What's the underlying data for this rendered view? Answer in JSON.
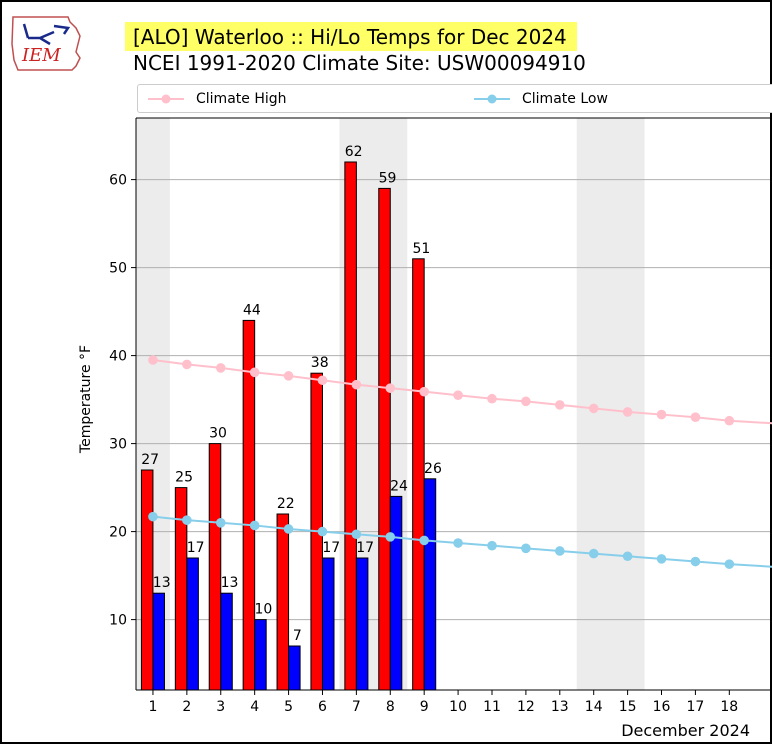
{
  "logo": {
    "text": "IEM"
  },
  "header": {
    "title": "[ALO] Waterloo :: Hi/Lo Temps for Dec 2024",
    "subtitle": "NCEI 1991-2020 Climate Site: USW00094910"
  },
  "legend": [
    {
      "label": "Climate High",
      "color": "#ffc0cb"
    },
    {
      "label": "Climate Low",
      "color": "#87ceeb"
    }
  ],
  "chart_data": {
    "type": "bar",
    "title": "[ALO] Waterloo :: Hi/Lo Temps for Dec 2024",
    "subtitle": "NCEI 1991-2020 Climate Site: USW00094910",
    "xlabel": "December 2024",
    "ylabel": "Temperature °F",
    "x_ticks": [
      1,
      2,
      3,
      4,
      5,
      6,
      7,
      8,
      9,
      10,
      11,
      12,
      13,
      14,
      15,
      16,
      17,
      18
    ],
    "y_ticks": [
      10,
      20,
      30,
      40,
      50,
      60
    ],
    "xlim": [
      0.5,
      19.2
    ],
    "ylim": [
      2,
      67
    ],
    "grid": "horizontal",
    "weekend_shading": [
      [
        0.5,
        1.5
      ],
      [
        6.5,
        8.5
      ],
      [
        13.5,
        15.5
      ]
    ],
    "shading_color": "#ececec",
    "series": [
      {
        "kind": "bar",
        "color": "#ff0000",
        "days": [
          1,
          2,
          3,
          4,
          5,
          6,
          7,
          8,
          9
        ],
        "values": [
          27,
          25,
          30,
          44,
          22,
          38,
          62,
          59,
          51
        ]
      },
      {
        "kind": "bar",
        "color": "#0000ff",
        "days": [
          1,
          2,
          3,
          4,
          5,
          6,
          7,
          8,
          9
        ],
        "values": [
          13,
          17,
          13,
          10,
          7,
          17,
          17,
          24,
          26
        ]
      },
      {
        "name": "Climate High",
        "kind": "line",
        "color": "#ffc0cb",
        "x": [
          1,
          2,
          3,
          4,
          5,
          6,
          7,
          8,
          9,
          10,
          11,
          12,
          13,
          14,
          15,
          16,
          17,
          18,
          19.3
        ],
        "values": [
          39.5,
          39.0,
          38.6,
          38.1,
          37.7,
          37.2,
          36.7,
          36.3,
          35.9,
          35.5,
          35.1,
          34.8,
          34.4,
          34.0,
          33.6,
          33.3,
          33.0,
          32.6,
          32.3
        ]
      },
      {
        "name": "Climate Low",
        "kind": "line",
        "color": "#87ceeb",
        "x": [
          1,
          2,
          3,
          4,
          5,
          6,
          7,
          8,
          9,
          10,
          11,
          12,
          13,
          14,
          15,
          16,
          17,
          18,
          19.3
        ],
        "values": [
          21.7,
          21.3,
          21.0,
          20.7,
          20.3,
          20.0,
          19.7,
          19.4,
          19.0,
          18.7,
          18.4,
          18.1,
          17.8,
          17.5,
          17.2,
          16.9,
          16.6,
          16.3,
          16.0
        ]
      }
    ]
  }
}
